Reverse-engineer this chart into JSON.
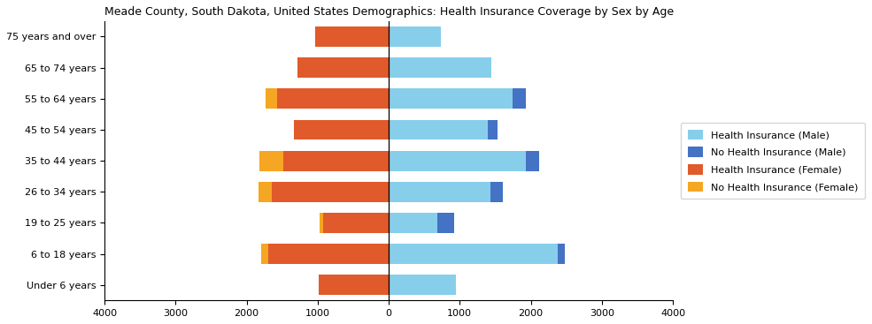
{
  "title": "Meade County, South Dakota, United States Demographics: Health Insurance Coverage by Sex by Age",
  "age_groups": [
    "Under 6 years",
    "6 to 18 years",
    "19 to 25 years",
    "26 to 34 years",
    "35 to 44 years",
    "45 to 54 years",
    "55 to 64 years",
    "65 to 74 years",
    "75 years and over"
  ],
  "male_insured": [
    950,
    2380,
    680,
    1430,
    1930,
    1390,
    1740,
    1440,
    730
  ],
  "male_uninsured": [
    0,
    100,
    240,
    180,
    190,
    140,
    195,
    0,
    0
  ],
  "female_insured": [
    990,
    1700,
    920,
    1640,
    1480,
    1340,
    1570,
    1290,
    1040
  ],
  "female_uninsured": [
    0,
    100,
    50,
    190,
    340,
    0,
    160,
    0,
    0
  ],
  "color_male_insured": "#87CEEB",
  "color_male_uninsured": "#4472C4",
  "color_female_insured": "#E05A2B",
  "color_female_uninsured": "#F5A623",
  "xlim": 4000,
  "xtick_step": 1000,
  "legend_labels": [
    "Health Insurance (Male)",
    "No Health Insurance (Male)",
    "Health Insurance (Female)",
    "No Health Insurance (Female)"
  ],
  "title_fontsize": 9,
  "tick_fontsize": 8,
  "legend_fontsize": 8,
  "bar_height": 0.65
}
